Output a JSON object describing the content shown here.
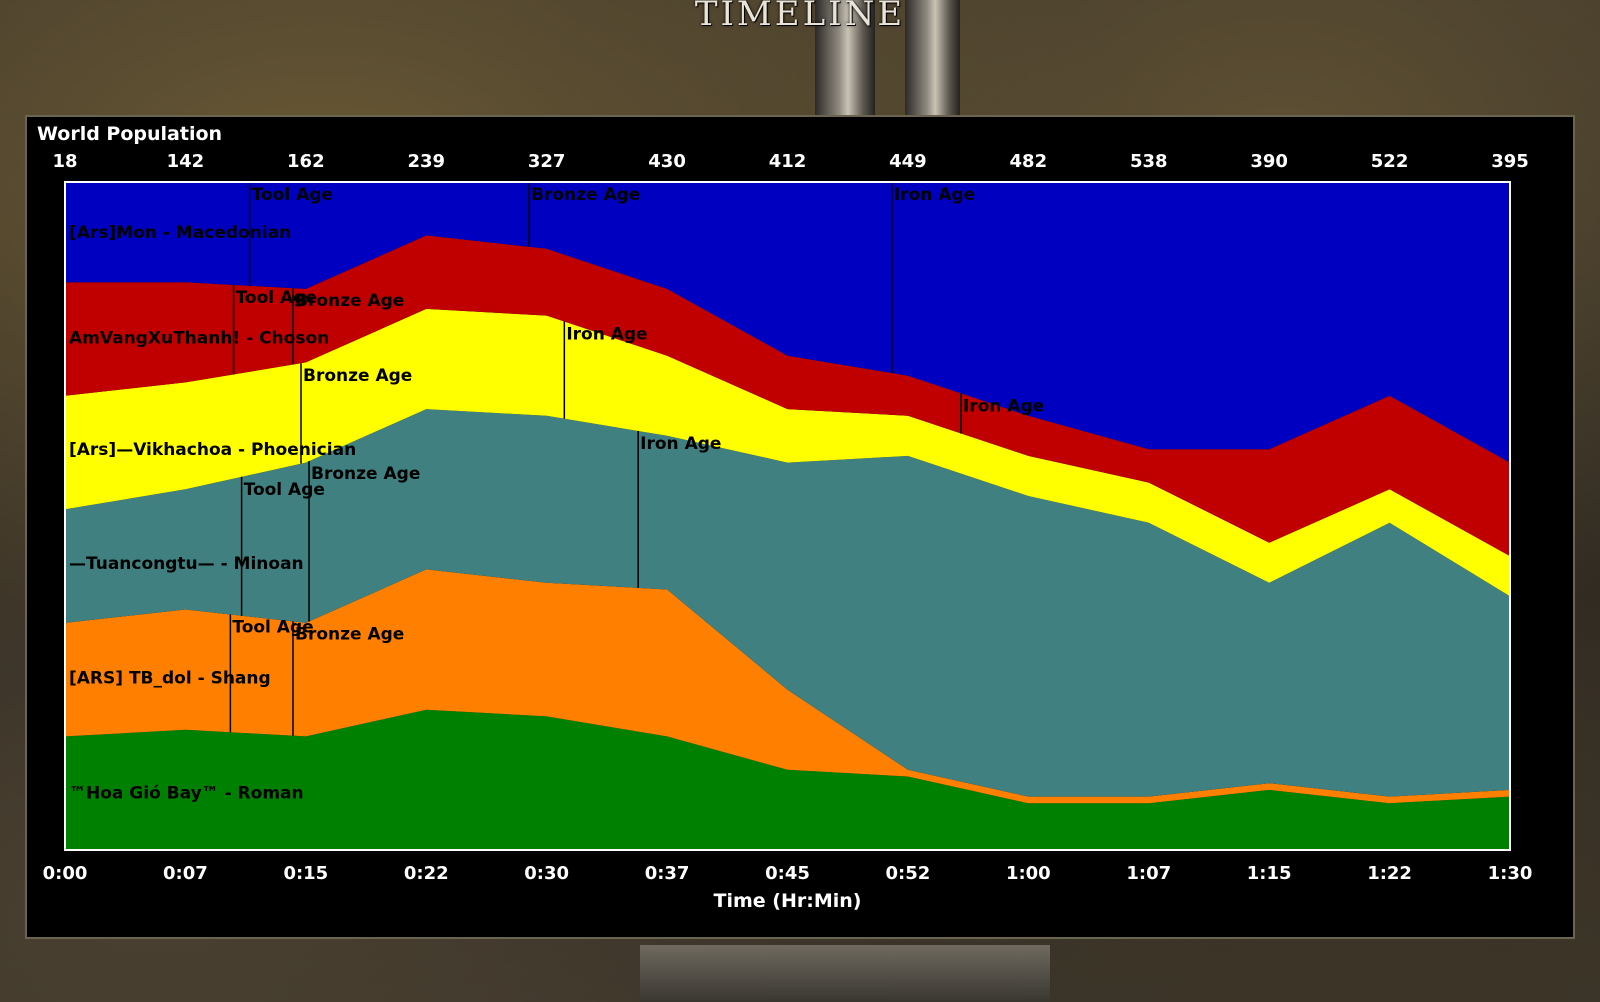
{
  "window": {
    "title": "Timeline"
  },
  "panel": {
    "title": "World Population"
  },
  "chart_data": {
    "type": "area",
    "stacked": true,
    "title": "World Population",
    "xlabel": "Time (Hr:Min)",
    "x_tick_labels": [
      "0:00",
      "0:07",
      "0:15",
      "0:22",
      "0:30",
      "0:37",
      "0:45",
      "0:52",
      "1:00",
      "1:07",
      "1:15",
      "1:22",
      "1:30"
    ],
    "x_range_minutes": [
      0,
      90
    ],
    "top_totals": [
      18,
      142,
      162,
      239,
      327,
      430,
      412,
      449,
      482,
      538,
      390,
      522,
      395
    ],
    "series": [
      {
        "name": "™Hoa Gió Bay™ - Roman",
        "color": "#008000",
        "values": [
          0.17,
          0.18,
          0.17,
          0.21,
          0.2,
          0.17,
          0.12,
          0.11,
          0.07,
          0.07,
          0.09,
          0.07,
          0.08
        ]
      },
      {
        "name": "[ARS] TB_dol - Shang",
        "color": "#ff8000",
        "values": [
          0.17,
          0.18,
          0.17,
          0.21,
          0.2,
          0.22,
          0.12,
          0.01,
          0.01,
          0.01,
          0.01,
          0.01,
          0.01
        ]
      },
      {
        "name": "—Tuancongtu— - Minoan",
        "color": "#408080",
        "values": [
          0.17,
          0.18,
          0.24,
          0.24,
          0.25,
          0.23,
          0.34,
          0.47,
          0.45,
          0.41,
          0.3,
          0.41,
          0.29
        ]
      },
      {
        "name": "[Ars]—Vikhachoa - Phoenician",
        "color": "#ffff00",
        "values": [
          0.17,
          0.16,
          0.15,
          0.15,
          0.15,
          0.12,
          0.08,
          0.06,
          0.06,
          0.06,
          0.06,
          0.05,
          0.06
        ]
      },
      {
        "name": "AmVangXuThanh! - Choson",
        "color": "#c00000",
        "values": [
          0.17,
          0.15,
          0.11,
          0.11,
          0.1,
          0.1,
          0.08,
          0.06,
          0.06,
          0.05,
          0.14,
          0.14,
          0.14
        ]
      },
      {
        "name": "[Ars]Mon - Macedonian",
        "color": "#0000c0",
        "values": [
          0.15,
          0.15,
          0.16,
          0.08,
          0.1,
          0.16,
          0.26,
          0.29,
          0.35,
          0.4,
          0.4,
          0.32,
          0.42
        ]
      }
    ],
    "age_events": [
      {
        "series": 5,
        "label": "Tool Age",
        "minute": 11.5
      },
      {
        "series": 5,
        "label": "Bronze Age",
        "minute": 28.9
      },
      {
        "series": 5,
        "label": "Iron Age",
        "minute": 51.5
      },
      {
        "series": 4,
        "label": "Tool Age",
        "minute": 10.5
      },
      {
        "series": 4,
        "label": "Bronze Age",
        "minute": 14.2
      },
      {
        "series": 4,
        "label": "Iron Age",
        "minute": 55.8
      },
      {
        "series": 3,
        "label": "Bronze Age",
        "minute": 14.7
      },
      {
        "series": 3,
        "label": "Iron Age",
        "minute": 31.1
      },
      {
        "series": 2,
        "label": "Tool Age",
        "minute": 11.0
      },
      {
        "series": 2,
        "label": "Bronze Age",
        "minute": 15.2
      },
      {
        "series": 2,
        "label": "Iron Age",
        "minute": 35.7
      },
      {
        "series": 1,
        "label": "Tool Age",
        "minute": 10.3
      },
      {
        "series": 1,
        "label": "Bronze Age",
        "minute": 14.2
      }
    ],
    "grid": false,
    "legend": "inline-left"
  }
}
